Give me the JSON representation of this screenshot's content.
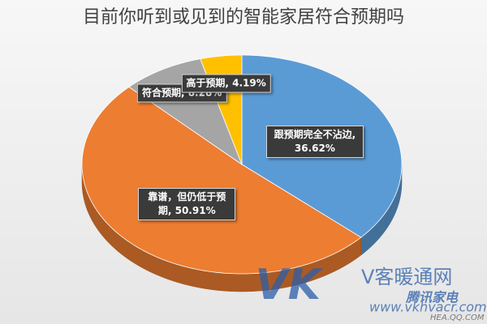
{
  "chart_data": {
    "type": "pie3d",
    "title": "目前你听到或见到的智能家居符合预期吗",
    "labels": [
      "跟预期完全不沾边, 36.62%",
      "靠谱，但仍低于预期, 50.91%",
      "符合预期, 8.28%",
      "高于预期, 4.19%"
    ],
    "values": [
      36.62,
      50.91,
      8.28,
      4.19
    ],
    "colors": [
      "#5b9bd5",
      "#ed7d31",
      "#a5a5a5",
      "#ffc000"
    ]
  },
  "watermark": {
    "logo": "VK",
    "name": "V客暖通网",
    "url": "www.vkhvacr.com",
    "brand": "腾讯家电",
    "brand_url": "HEA.QQ.COM"
  }
}
